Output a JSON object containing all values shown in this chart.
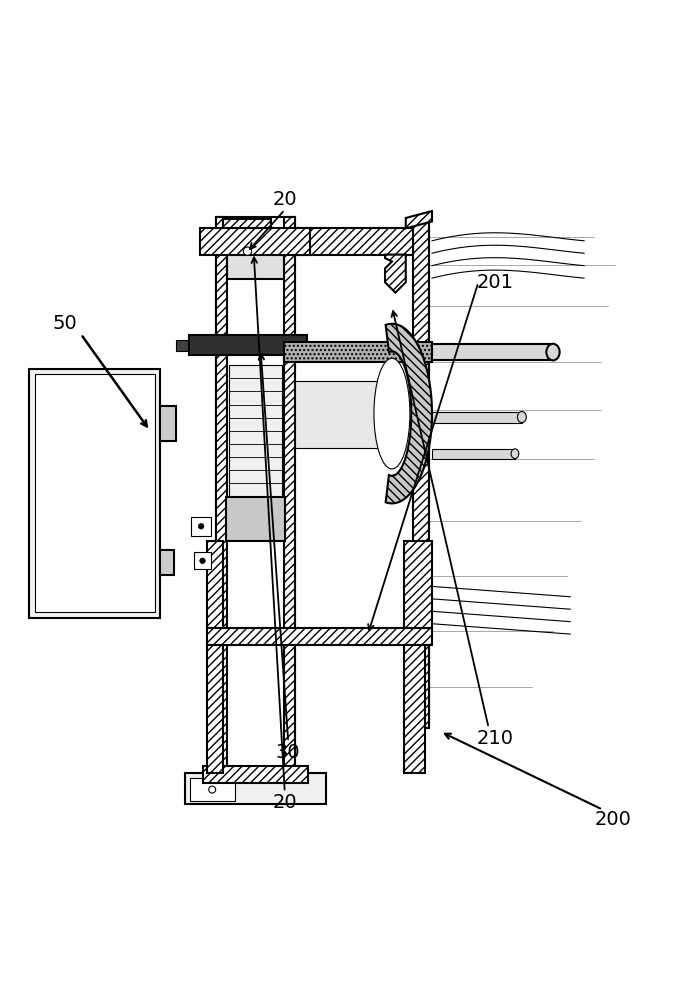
{
  "bg_color": "#ffffff",
  "line_color": "#000000",
  "figsize": [
    6.94,
    10.0
  ],
  "dpi": 100
}
